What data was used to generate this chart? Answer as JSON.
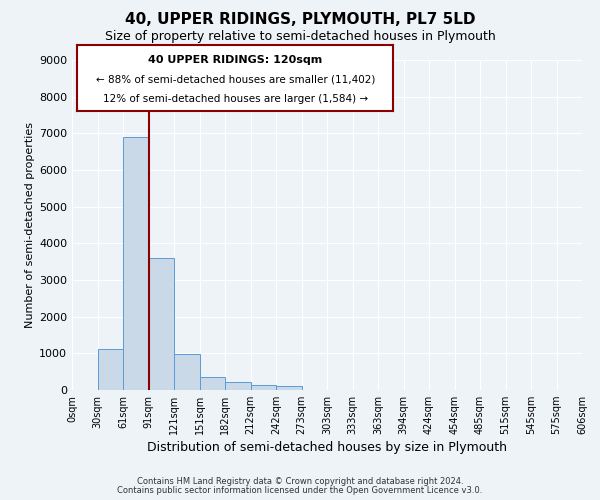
{
  "title": "40, UPPER RIDINGS, PLYMOUTH, PL7 5LD",
  "subtitle": "Size of property relative to semi-detached houses in Plymouth",
  "xlabel": "Distribution of semi-detached houses by size in Plymouth",
  "ylabel": "Number of semi-detached properties",
  "bin_labels": [
    "0sqm",
    "30sqm",
    "61sqm",
    "91sqm",
    "121sqm",
    "151sqm",
    "182sqm",
    "212sqm",
    "242sqm",
    "273sqm",
    "303sqm",
    "333sqm",
    "363sqm",
    "394sqm",
    "424sqm",
    "454sqm",
    "485sqm",
    "515sqm",
    "545sqm",
    "575sqm",
    "606sqm"
  ],
  "bar_values": [
    0,
    1130,
    6890,
    3590,
    980,
    350,
    220,
    140,
    100,
    0,
    0,
    0,
    0,
    0,
    0,
    0,
    0,
    0,
    0,
    0
  ],
  "bar_color": "#c9d9e8",
  "bar_edge_color": "#5b9bd5",
  "ylim": [
    0,
    9000
  ],
  "yticks": [
    0,
    1000,
    2000,
    3000,
    4000,
    5000,
    6000,
    7000,
    8000,
    9000
  ],
  "property_line_x": 3,
  "property_line_color": "#8b0000",
  "annotation_title": "40 UPPER RIDINGS: 120sqm",
  "annotation_line1": "← 88% of semi-detached houses are smaller (11,402)",
  "annotation_line2": "12% of semi-detached houses are larger (1,584) →",
  "annotation_box_color": "#8b0000",
  "footer_line1": "Contains HM Land Registry data © Crown copyright and database right 2024.",
  "footer_line2": "Contains public sector information licensed under the Open Government Licence v3.0.",
  "background_color": "#eef3f8",
  "plot_background_color": "#eef3f8"
}
